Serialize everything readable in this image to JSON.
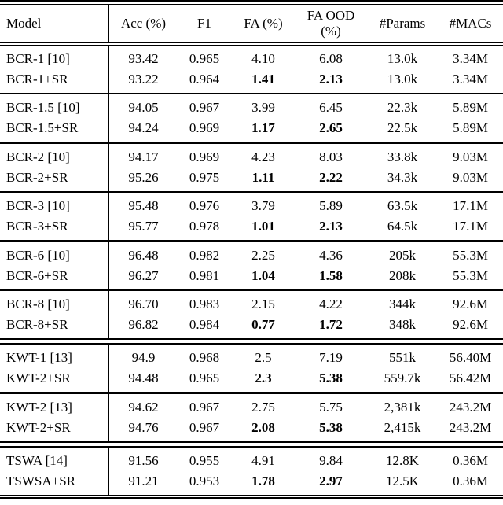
{
  "table": {
    "header": {
      "model": "Model",
      "acc": "Acc (%)",
      "f1": "F1",
      "fa": "FA (%)",
      "fa_ood": "FA OOD (%)",
      "params": "#Params",
      "macs": "#MACs"
    },
    "groups": [
      {
        "rows": [
          {
            "model": "BCR-1 [10]",
            "acc": "93.42",
            "f1": "0.965",
            "fa": "4.10",
            "fa_ood": "6.08",
            "params": "13.0k",
            "macs": "3.34M"
          },
          {
            "model": "BCR-1+SR",
            "acc": "93.22",
            "f1": "0.964",
            "fa": "1.41",
            "fa_ood": "2.13",
            "params": "13.0k",
            "macs": "3.34M"
          }
        ]
      },
      {
        "rows": [
          {
            "model": "BCR-1.5 [10]",
            "acc": "94.05",
            "f1": "0.967",
            "fa": "3.99",
            "fa_ood": "6.45",
            "params": "22.3k",
            "macs": "5.89M"
          },
          {
            "model": "BCR-1.5+SR",
            "acc": "94.24",
            "f1": "0.969",
            "fa": "1.17",
            "fa_ood": "2.65",
            "params": "22.5k",
            "macs": "5.89M"
          }
        ]
      },
      {
        "rows": [
          {
            "model": "BCR-2 [10]",
            "acc": "94.17",
            "f1": "0.969",
            "fa": "4.23",
            "fa_ood": "8.03",
            "params": "33.8k",
            "macs": "9.03M"
          },
          {
            "model": "BCR-2+SR",
            "acc": "95.26",
            "f1": "0.975",
            "fa": "1.11",
            "fa_ood": "2.22",
            "params": "34.3k",
            "macs": "9.03M"
          }
        ]
      },
      {
        "rows": [
          {
            "model": "BCR-3 [10]",
            "acc": "95.48",
            "f1": "0.976",
            "fa": "3.79",
            "fa_ood": "5.89",
            "params": "63.5k",
            "macs": "17.1M"
          },
          {
            "model": "BCR-3+SR",
            "acc": "95.77",
            "f1": "0.978",
            "fa": "1.01",
            "fa_ood": "2.13",
            "params": "64.5k",
            "macs": "17.1M"
          }
        ]
      },
      {
        "rows": [
          {
            "model": "BCR-6 [10]",
            "acc": "96.48",
            "f1": "0.982",
            "fa": "2.25",
            "fa_ood": "4.36",
            "params": "205k",
            "macs": "55.3M"
          },
          {
            "model": "BCR-6+SR",
            "acc": "96.27",
            "f1": "0.981",
            "fa": "1.04",
            "fa_ood": "1.58",
            "params": "208k",
            "macs": "55.3M"
          }
        ]
      },
      {
        "rows": [
          {
            "model": "BCR-8 [10]",
            "acc": "96.70",
            "f1": "0.983",
            "fa": "2.15",
            "fa_ood": "4.22",
            "params": "344k",
            "macs": "92.6M"
          },
          {
            "model": "BCR-8+SR",
            "acc": "96.82",
            "f1": "0.984",
            "fa": "0.77",
            "fa_ood": "1.72",
            "params": "348k",
            "macs": "92.6M"
          }
        ]
      },
      {
        "rows": [
          {
            "model": "KWT-1 [13]",
            "acc": "94.9",
            "f1": "0.968",
            "fa": "2.5",
            "fa_ood": "7.19",
            "params": "551k",
            "macs": "56.40M"
          },
          {
            "model": "KWT-2+SR",
            "acc": "94.48",
            "f1": "0.965",
            "fa": "2.3",
            "fa_ood": "5.38",
            "params": "559.7k",
            "macs": "56.42M"
          }
        ]
      },
      {
        "rows": [
          {
            "model": "KWT-2 [13]",
            "acc": "94.62",
            "f1": "0.967",
            "fa": "2.75",
            "fa_ood": "5.75",
            "params": "2,381k",
            "macs": "243.2M"
          },
          {
            "model": "KWT-2+SR",
            "acc": "94.76",
            "f1": "0.967",
            "fa": "2.08",
            "fa_ood": "5.38",
            "params": "2,415k",
            "macs": "243.2M"
          }
        ]
      },
      {
        "rows": [
          {
            "model": "TSWA [14]",
            "acc": "91.56",
            "f1": "0.955",
            "fa": "4.91",
            "fa_ood": "9.84",
            "params": "12.8K",
            "macs": "0.36M"
          },
          {
            "model": "TSWSA+SR",
            "acc": "91.21",
            "f1": "0.953",
            "fa": "1.78",
            "fa_ood": "2.97",
            "params": "12.5K",
            "macs": "0.36M"
          }
        ]
      }
    ]
  }
}
